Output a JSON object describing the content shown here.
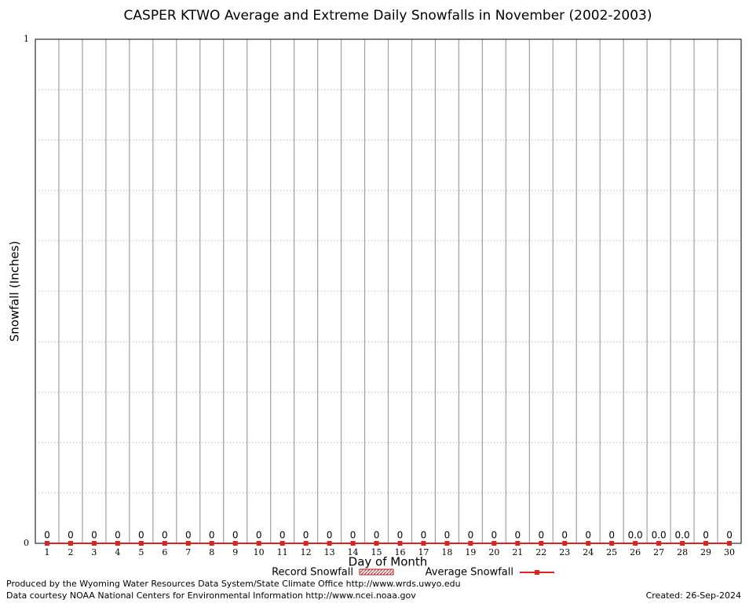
{
  "chart_data": {
    "type": "bar_line",
    "title": "CASPER KTWO Average and Extreme Daily Snowfalls in November (2002-2003)",
    "ylabel": "Snowfall (Inches)",
    "xlabel": "Day of Month",
    "categories": [
      "1",
      "2",
      "3",
      "4",
      "5",
      "6",
      "7",
      "8",
      "9",
      "10",
      "11",
      "12",
      "13",
      "14",
      "15",
      "16",
      "17",
      "18",
      "19",
      "20",
      "21",
      "22",
      "23",
      "24",
      "25",
      "26",
      "27",
      "28",
      "29",
      "30"
    ],
    "series": [
      {
        "name": "Record Snowfall",
        "kind": "bar",
        "color": "#b22222",
        "values": [
          0,
          0,
          0,
          0,
          0,
          0,
          0,
          0,
          0,
          0,
          0,
          0,
          0,
          0,
          0,
          0,
          0,
          0,
          0,
          0,
          0,
          0,
          0,
          0,
          0,
          0,
          0,
          0,
          0,
          0
        ],
        "value_labels": [
          "0",
          "0",
          "0",
          "0",
          "0",
          "0",
          "0",
          "0",
          "0",
          "0",
          "0",
          "0",
          "0",
          "0",
          "0",
          "0",
          "0",
          "0",
          "0",
          "0",
          "0",
          "0",
          "0",
          "0",
          "0",
          "0.0",
          "0.0",
          "0.0",
          "0",
          "0"
        ]
      },
      {
        "name": "Average Snowfall",
        "kind": "line",
        "color": "#dd2222",
        "values": [
          0,
          0,
          0,
          0,
          0,
          0,
          0,
          0,
          0,
          0,
          0,
          0,
          0,
          0,
          0,
          0,
          0,
          0,
          0,
          0,
          0,
          0,
          0,
          0,
          0,
          0,
          0,
          0,
          0,
          0
        ]
      }
    ],
    "ylim": [
      0,
      1
    ],
    "yticks": [
      0,
      1
    ],
    "minor_yticks": [
      0.1,
      0.2,
      0.3,
      0.4,
      0.5,
      0.6,
      0.7,
      0.8,
      0.9
    ],
    "grid": true,
    "footer": [
      "Produced by the Wyoming Water Resources Data System/State Climate Office http://www.wrds.uwyo.edu",
      "Data courtesy NOAA National Centers for Environmental Information http://www.ncei.noaa.gov"
    ],
    "created": "Created:  26-Sep-2024"
  }
}
